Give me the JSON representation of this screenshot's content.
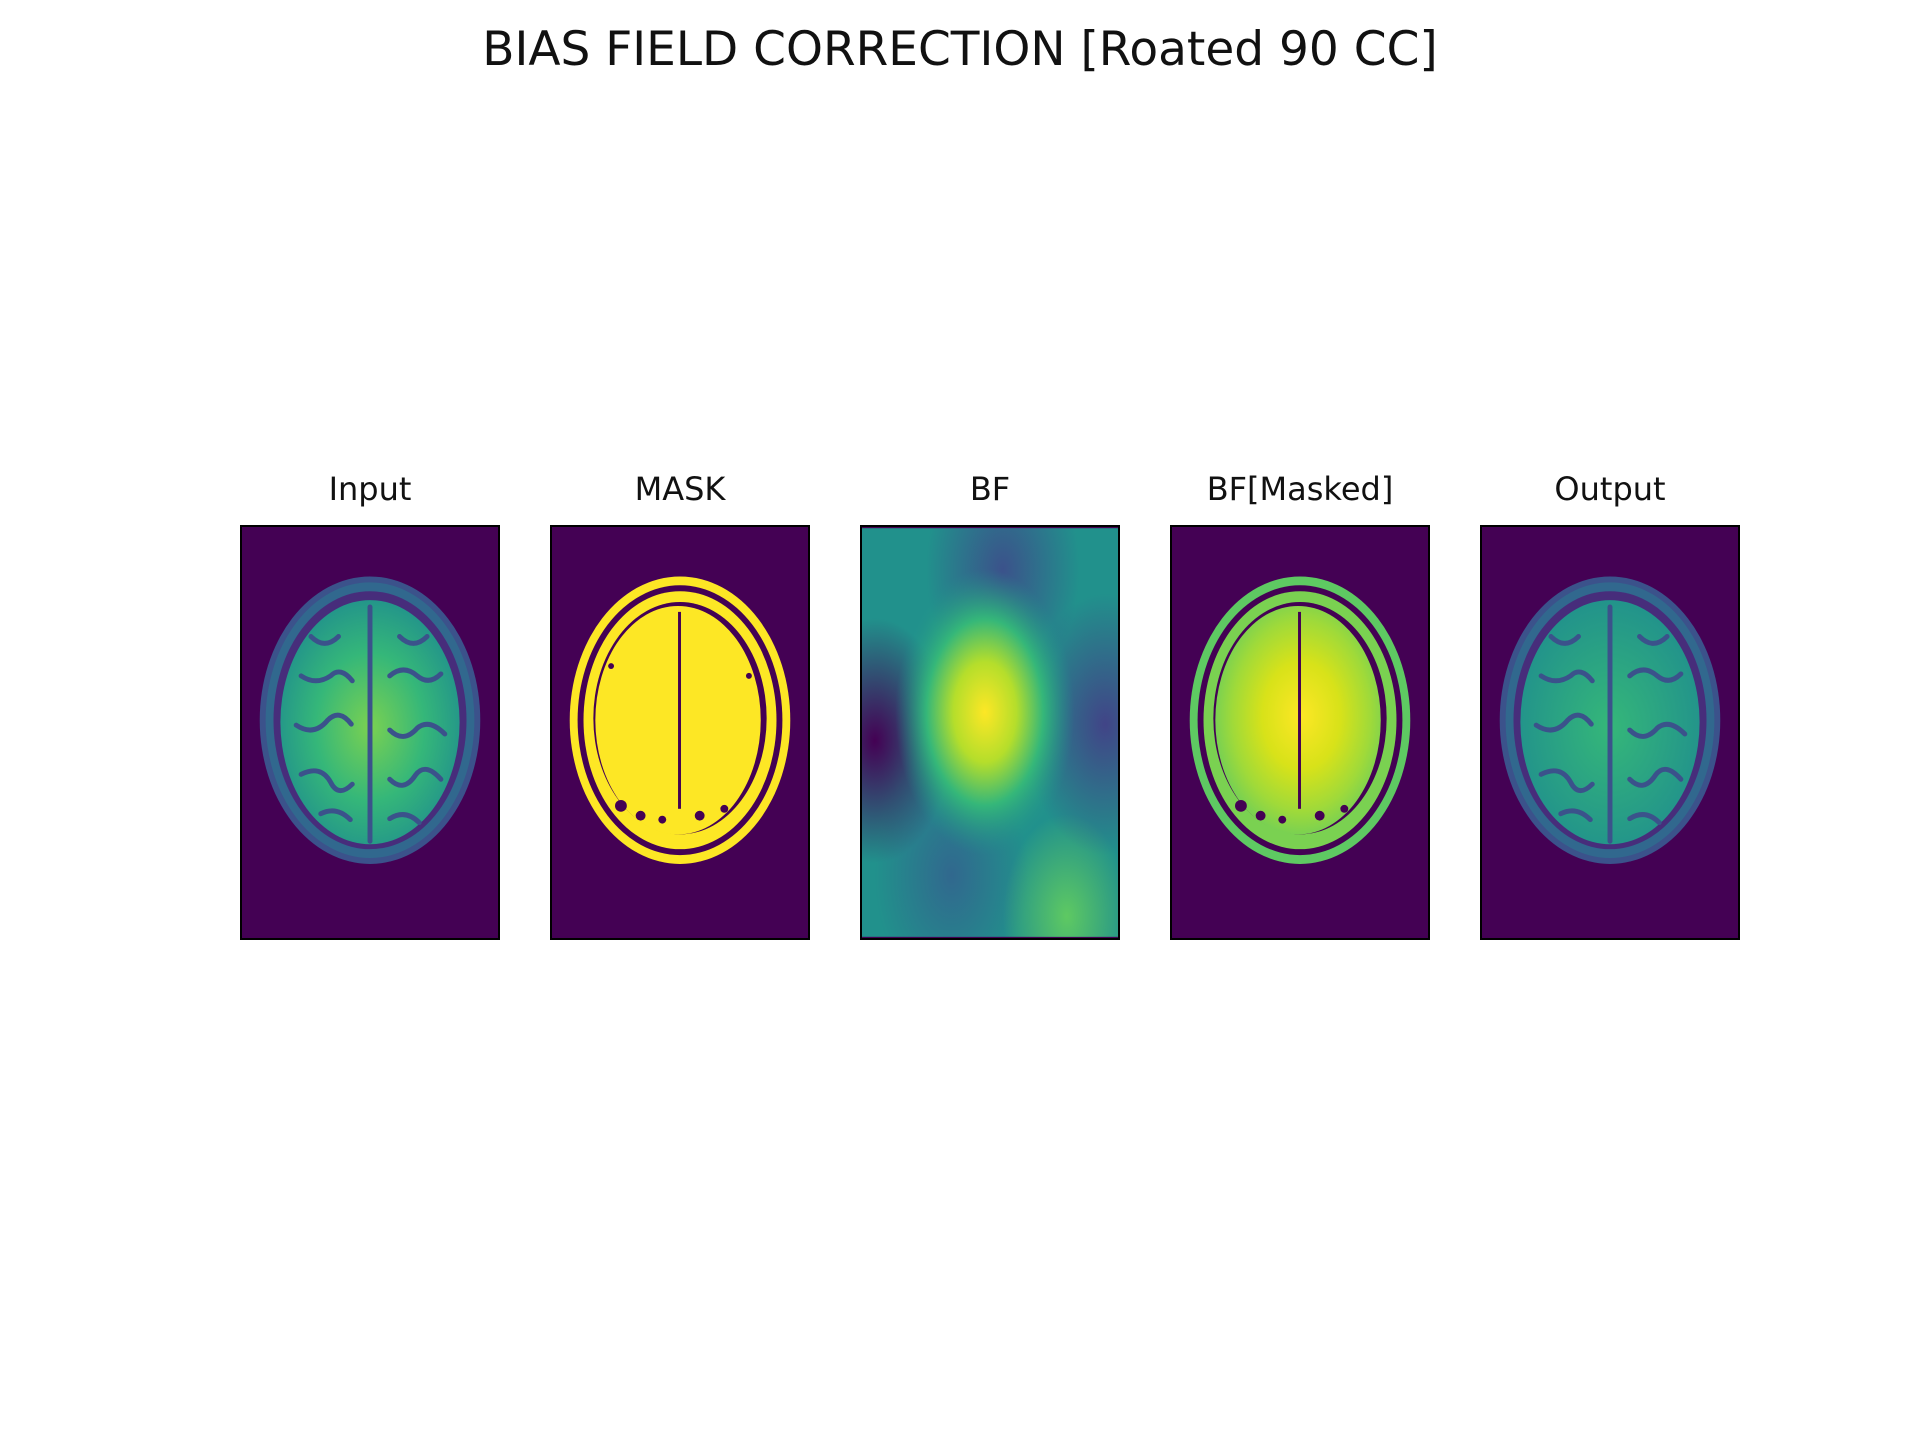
{
  "figure": {
    "title": "BIAS FIELD CORRECTION [Roated 90 CC]"
  },
  "panels": [
    {
      "title": "Input"
    },
    {
      "title": "MASK"
    },
    {
      "title": "BF"
    },
    {
      "title": "BF[Masked]"
    },
    {
      "title": "Output"
    }
  ],
  "colors": {
    "background": "#440154",
    "dark_blue": "#3b528b",
    "teal": "#21918c",
    "green": "#5ec962",
    "yellow": "#fde725",
    "frame": "#000000"
  }
}
